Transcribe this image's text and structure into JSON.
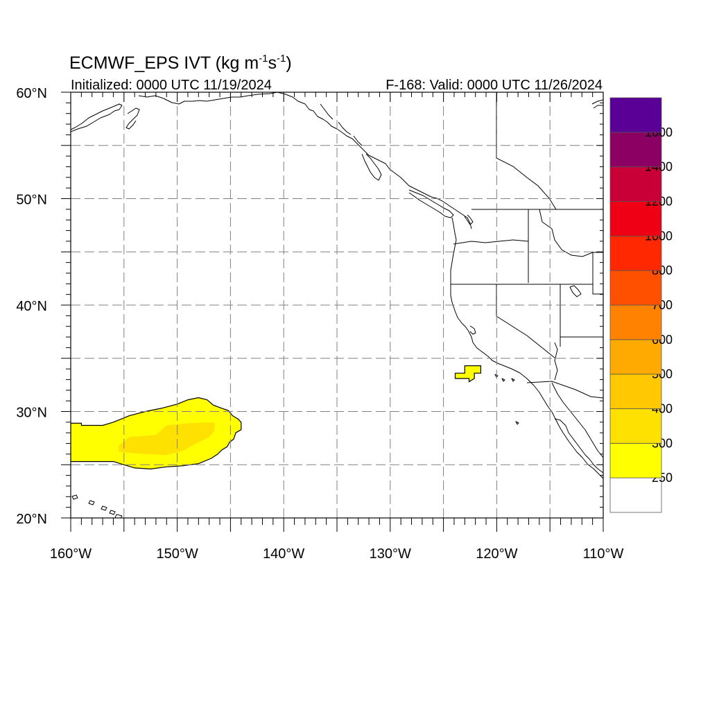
{
  "figure": {
    "title_main": "ECMWF_EPS IVT (kg m",
    "title_exp1": "-1",
    "title_mid": "s",
    "title_exp2": "-1",
    "title_end": ")",
    "init_label": "Initialized: 0000 UTC 11/19/2024",
    "valid_label": "F-168: Valid: 0000 UTC 11/26/2024"
  },
  "chart_data": {
    "type": "map",
    "variable": "IVT",
    "units": "kg m-1 s-1",
    "lon_range": [
      -160,
      -110
    ],
    "lat_range": [
      20,
      60
    ],
    "grid_lines": {
      "lon_every": 5,
      "lat_every": 5,
      "style": "dashed"
    },
    "lon_ticks": [
      {
        "value": -160,
        "label": "160°W"
      },
      {
        "value": -150,
        "label": "150°W"
      },
      {
        "value": -140,
        "label": "140°W"
      },
      {
        "value": -130,
        "label": "130°W"
      },
      {
        "value": -120,
        "label": "120°W"
      },
      {
        "value": -110,
        "label": "110°W"
      }
    ],
    "lat_ticks": [
      {
        "value": 20,
        "label": "20°N"
      },
      {
        "value": 30,
        "label": "30°N"
      },
      {
        "value": 40,
        "label": "40°N"
      },
      {
        "value": 50,
        "label": "50°N"
      },
      {
        "value": 60,
        "label": "60°N"
      }
    ],
    "colorbar": {
      "position": "right",
      "levels": [
        {
          "color": "#ffffff",
          "label": "250"
        },
        {
          "color": "#ffff00",
          "label": "300"
        },
        {
          "color": "#ffe100",
          "label": "400"
        },
        {
          "color": "#ffc800",
          "label": "500"
        },
        {
          "color": "#ffaa00",
          "label": "600"
        },
        {
          "color": "#ff8200",
          "label": "700"
        },
        {
          "color": "#ff5000",
          "label": "800"
        },
        {
          "color": "#ff2800",
          "label": "1000"
        },
        {
          "color": "#f00014",
          "label": "1200"
        },
        {
          "color": "#c80037",
          "label": "1400"
        },
        {
          "color": "#8c0064",
          "label": "1600"
        },
        {
          "color": "#5a0096",
          "label": ""
        }
      ]
    },
    "ivt_regions": [
      {
        "name": "subtropical-moisture-plume",
        "min_ivt": 250,
        "color": "#ffff00",
        "outline": [
          [
            -160,
            28.9
          ],
          [
            -159.0,
            28.9
          ],
          [
            -159.0,
            28.7
          ],
          [
            -157.0,
            28.7
          ],
          [
            -156.0,
            29.0
          ],
          [
            -154.5,
            29.6
          ],
          [
            -153.0,
            30.0
          ],
          [
            -151.5,
            30.3
          ],
          [
            -150.0,
            30.7
          ],
          [
            -149.0,
            31.1
          ],
          [
            -148.0,
            31.3
          ],
          [
            -147.2,
            31.1
          ],
          [
            -146.6,
            30.6
          ],
          [
            -145.8,
            30.3
          ],
          [
            -145.2,
            30.1
          ],
          [
            -144.8,
            29.6
          ],
          [
            -144.3,
            29.3
          ],
          [
            -144.0,
            29.0
          ],
          [
            -144.0,
            28.3
          ],
          [
            -144.5,
            28.0
          ],
          [
            -144.7,
            27.4
          ],
          [
            -145.1,
            27.1
          ],
          [
            -145.3,
            26.7
          ],
          [
            -145.8,
            26.4
          ],
          [
            -146.2,
            26.0
          ],
          [
            -146.8,
            25.6
          ],
          [
            -148.0,
            25.1
          ],
          [
            -149.5,
            24.9
          ],
          [
            -151.0,
            24.8
          ],
          [
            -152.5,
            24.6
          ],
          [
            -154.0,
            24.7
          ],
          [
            -155.0,
            25.0
          ],
          [
            -156.0,
            25.3
          ],
          [
            -160.0,
            25.3
          ]
        ]
      },
      {
        "name": "plume-core",
        "min_ivt": 300,
        "color": "#ffe100",
        "outline": [
          [
            -155.5,
            26.8
          ],
          [
            -154.5,
            27.6
          ],
          [
            -152.0,
            27.8
          ],
          [
            -151.0,
            28.7
          ],
          [
            -149.0,
            28.9
          ],
          [
            -146.5,
            29.0
          ],
          [
            -146.5,
            28.2
          ],
          [
            -147.0,
            27.6
          ],
          [
            -148.2,
            27.0
          ],
          [
            -149.5,
            26.3
          ],
          [
            -151.0,
            25.9
          ],
          [
            -153.0,
            26.0
          ],
          [
            -155.5,
            26.2
          ]
        ]
      },
      {
        "name": "offshore-california-patch",
        "min_ivt": 250,
        "color": "#ffff00",
        "outline": [
          [
            -123.9,
            33.6
          ],
          [
            -123.0,
            33.6
          ],
          [
            -123.0,
            34.3
          ],
          [
            -121.5,
            34.3
          ],
          [
            -121.5,
            33.6
          ],
          [
            -122.1,
            33.6
          ],
          [
            -122.1,
            33.1
          ],
          [
            -122.6,
            32.8
          ],
          [
            -122.6,
            33.1
          ],
          [
            -123.9,
            33.1
          ]
        ]
      }
    ],
    "coastline_note": "North American west coast with US state and Canada/Mexico borders; Hawaiian islands at lower left"
  },
  "colors": {
    "ivt_250": "#ffff00",
    "ivt_300": "#ffe100",
    "grid": "#808080",
    "coast": "#000000",
    "border": "#555555"
  }
}
